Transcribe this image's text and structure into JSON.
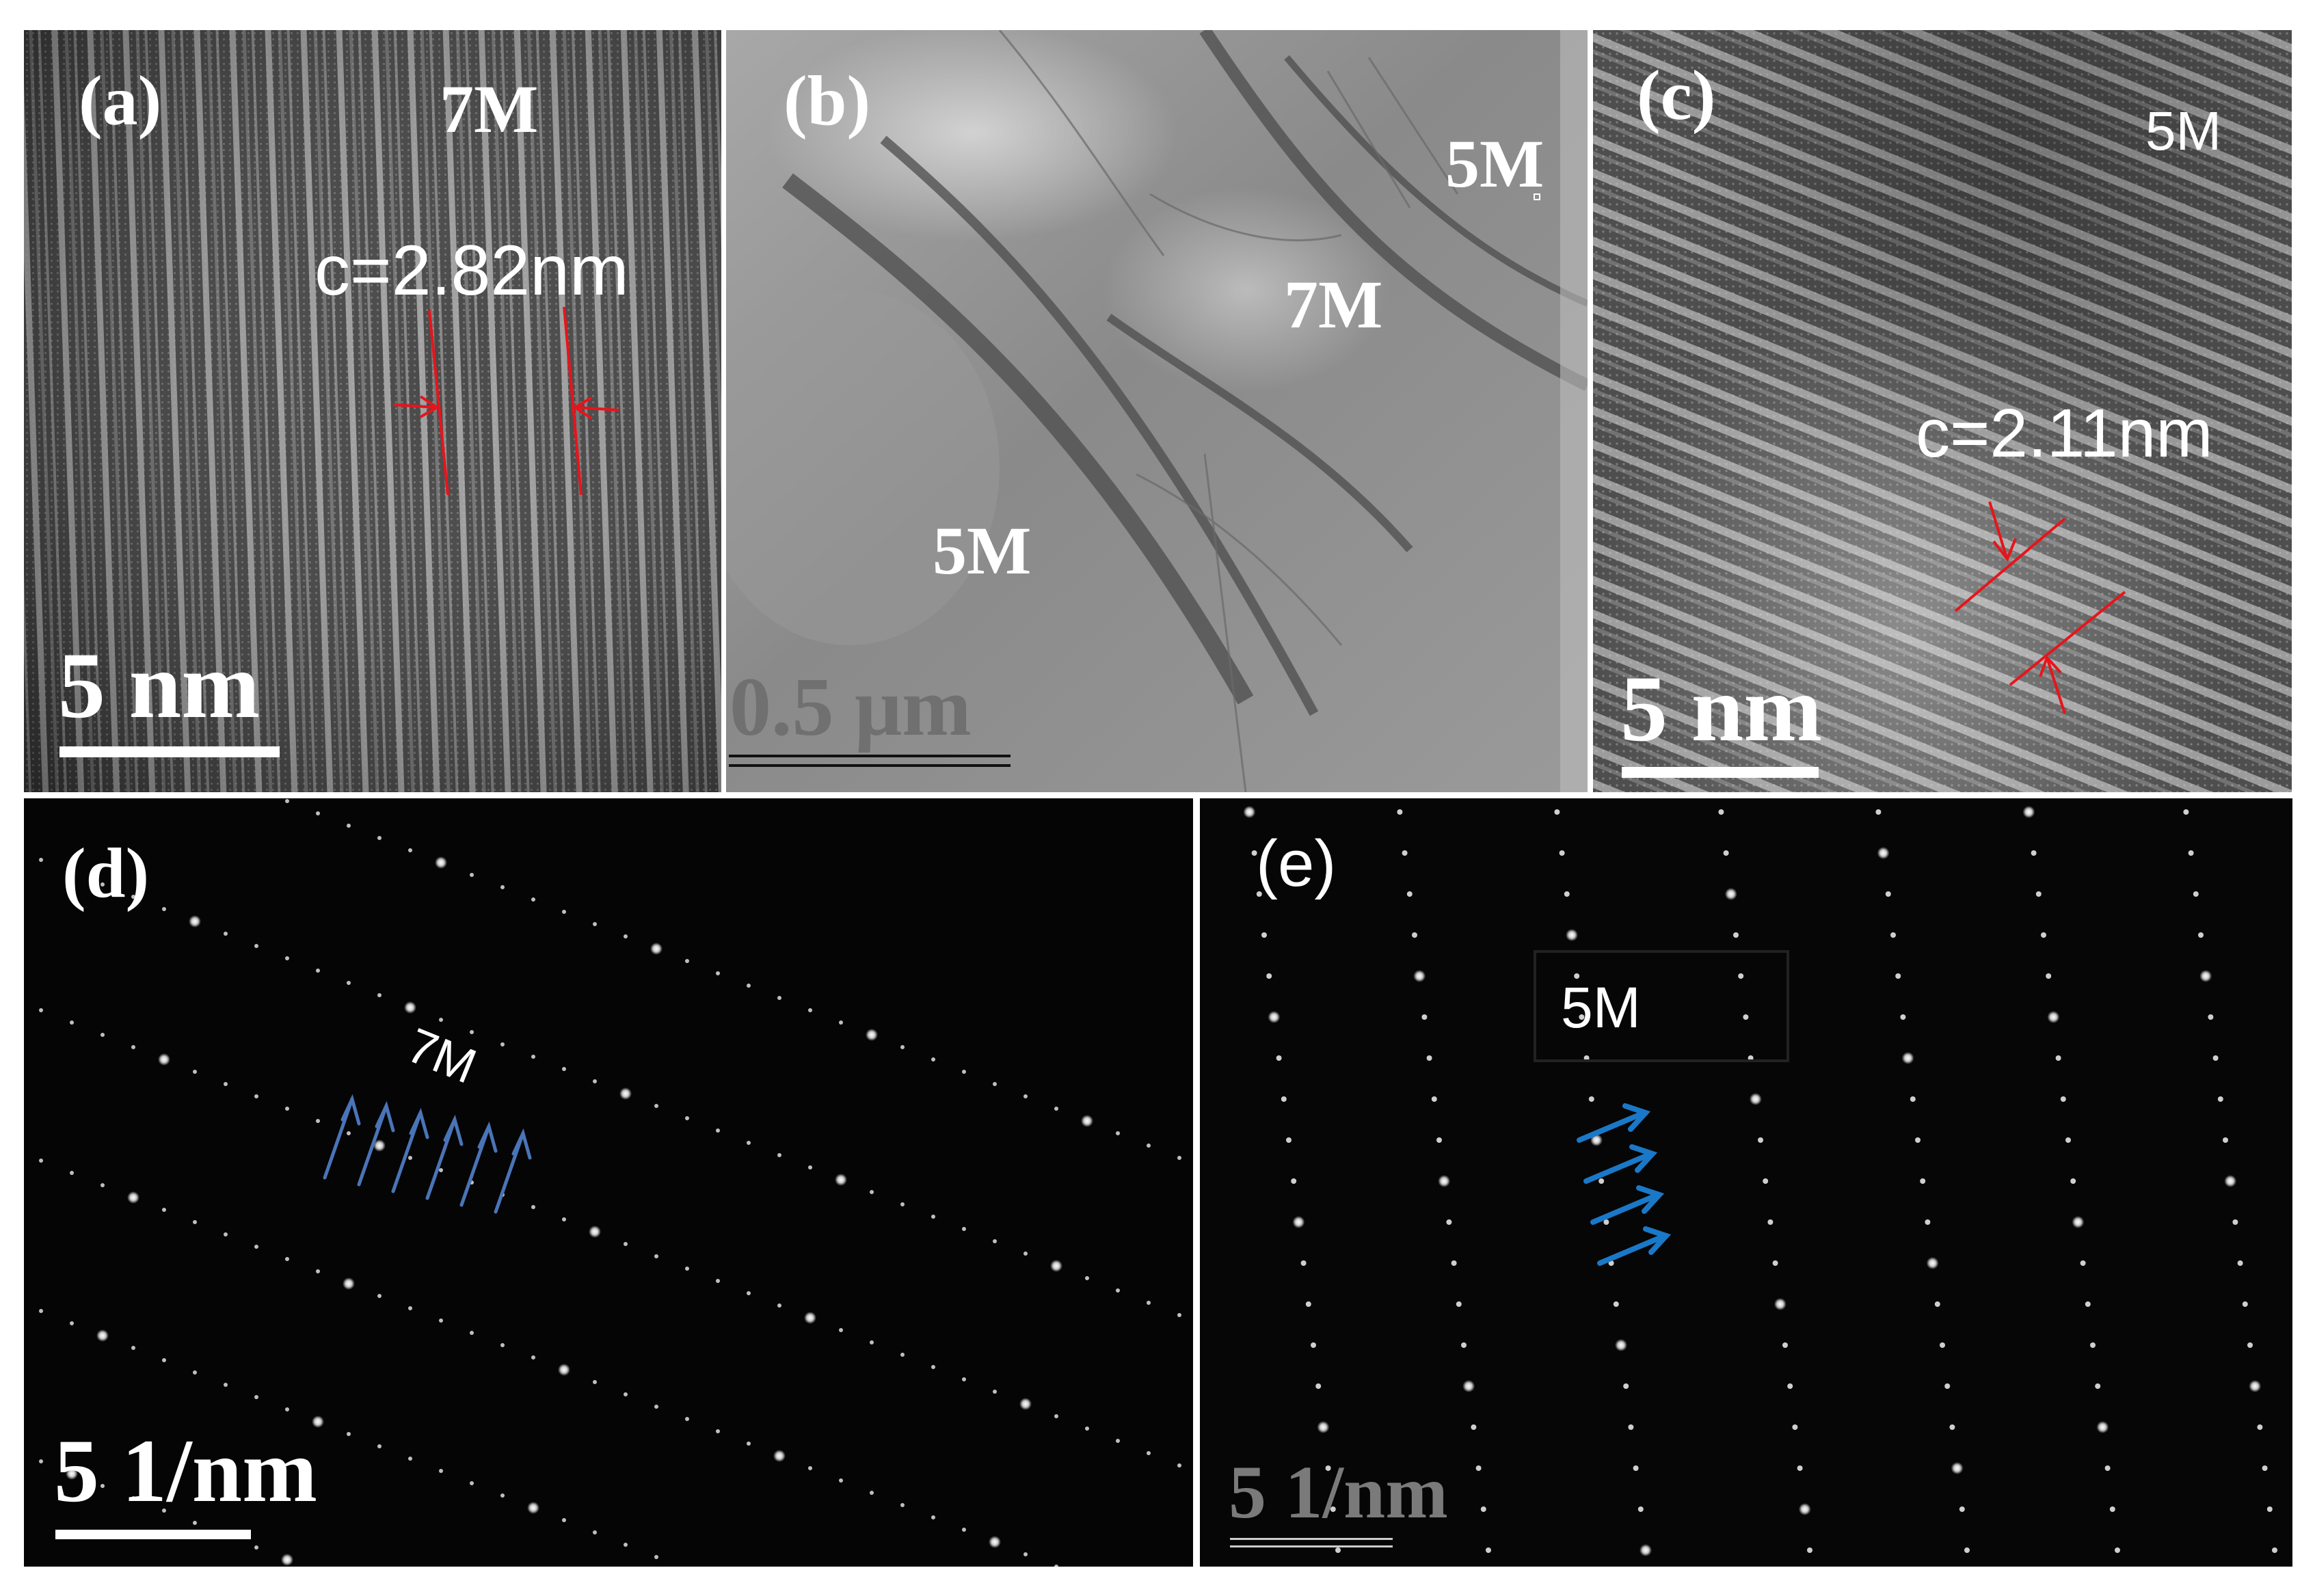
{
  "panels": {
    "a": {
      "letter": "(a)",
      "phase": "7M",
      "spacing": "c=2.82nm",
      "scalebar": "5 nm"
    },
    "b": {
      "letter": "(b)",
      "phase_top": "5M",
      "phase_mid": "7M",
      "phase_low": "5M",
      "scalebar": "0.5 μm"
    },
    "c": {
      "letter": "(c)",
      "phase": "5M",
      "spacing": "c=2.11nm",
      "scalebar": "5 nm"
    },
    "d": {
      "letter": "(d)",
      "phase": "7M",
      "scalebar": "5 1/nm",
      "arrow_count": 6
    },
    "e": {
      "letter": "(e)",
      "phase": "5M",
      "scalebar": "5 1/nm",
      "arrow_count": 4
    }
  },
  "colors": {
    "measure_red": "#e8141b",
    "arrow_blue_d": "#4a74b8",
    "arrow_blue_e": "#1a78c8",
    "label_white": "#ffffff"
  }
}
